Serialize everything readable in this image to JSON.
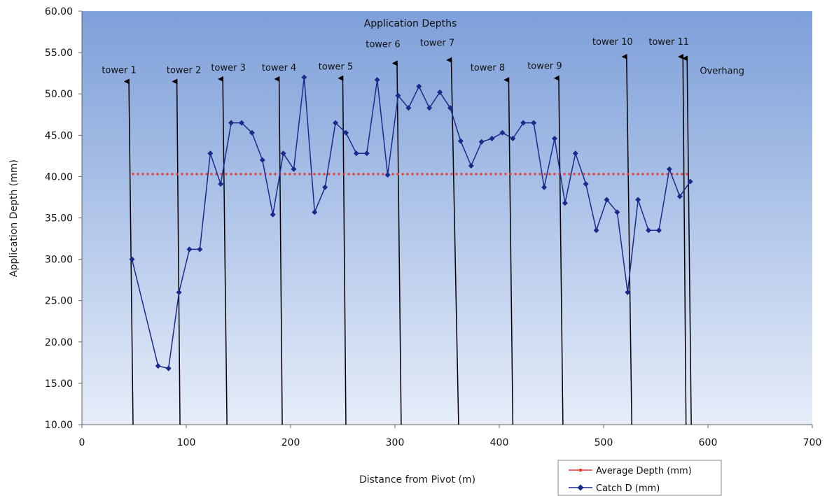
{
  "chart_data": {
    "type": "line",
    "title": "Application Depths",
    "xlabel": "Distance from Pivot (m)",
    "ylabel": "Application Depth (mm)",
    "xlim": [
      0,
      700
    ],
    "ylim": [
      10,
      60
    ],
    "x_ticks": [
      0,
      100,
      200,
      300,
      400,
      500,
      600,
      700
    ],
    "y_ticks": [
      10,
      15,
      20,
      25,
      30,
      35,
      40,
      45,
      50,
      55,
      60
    ],
    "x_tick_labels": [
      "0",
      "100",
      "200",
      "300",
      "400",
      "500",
      "600",
      "700"
    ],
    "y_tick_labels": [
      "10.00",
      "15.00",
      "20.00",
      "25.00",
      "30.00",
      "35.00",
      "40.00",
      "45.00",
      "50.00",
      "55.00",
      "60.00"
    ],
    "background": "vertical gradient, blue (#7d9fd9) at top to pale blue (#e6edf9) at bottom",
    "grid": false,
    "legend_position": "bottom-right",
    "series": [
      {
        "name": "Average Depth (mm)",
        "color": "#e8382c",
        "style": "dotted",
        "x": [
          48,
          582
        ],
        "y": [
          40.3,
          40.3
        ]
      },
      {
        "name": "Catch D (mm)",
        "color": "#1b2a8a",
        "style": "solid with diamond markers",
        "x": [
          48,
          73,
          83,
          93,
          103,
          113,
          123,
          133,
          143,
          153,
          163,
          173,
          183,
          193,
          203,
          213,
          223,
          233,
          243,
          253,
          263,
          273,
          283,
          293,
          303,
          313,
          323,
          333,
          343,
          353,
          363,
          373,
          383,
          393,
          403,
          413,
          423,
          433,
          443,
          453,
          463,
          473,
          483,
          493,
          503,
          513,
          523,
          533,
          543,
          553,
          563,
          573,
          583
        ],
        "y": [
          30.0,
          17.1,
          16.8,
          26.0,
          31.2,
          31.2,
          42.8,
          39.1,
          46.5,
          46.5,
          45.3,
          42.0,
          35.4,
          42.8,
          40.9,
          52.0,
          35.7,
          38.7,
          46.5,
          45.3,
          42.8,
          42.8,
          51.7,
          40.2,
          49.8,
          48.3,
          50.9,
          48.3,
          50.2,
          48.3,
          44.3,
          41.3,
          44.2,
          44.6,
          45.3,
          44.6,
          46.5,
          46.5,
          38.7,
          44.6,
          36.8,
          42.8,
          39.1,
          33.5,
          37.2,
          35.7,
          26.0,
          37.2,
          33.5,
          33.5,
          40.9,
          37.6,
          39.4
        ]
      }
    ],
    "annotations": [
      {
        "label": "tower 1",
        "x_top": 45,
        "x_bottom": 49,
        "y_top": 51.5
      },
      {
        "label": "tower 2",
        "x_top": 91,
        "x_bottom": 94,
        "y_top": 51.5
      },
      {
        "label": "tower 3",
        "x_top": 135,
        "x_bottom": 139,
        "y_top": 51.8
      },
      {
        "label": "tower 4",
        "x_top": 189,
        "x_bottom": 192,
        "y_top": 51.8
      },
      {
        "label": "tower 5",
        "x_top": 250,
        "x_bottom": 253,
        "y_top": 51.9
      },
      {
        "label": "tower 6",
        "x_top": 302,
        "x_bottom": 306,
        "y_top": 53.7
      },
      {
        "label": "tower 7",
        "x_top": 354,
        "x_bottom": 361,
        "y_top": 54.1
      },
      {
        "label": "tower 8",
        "x_top": 409,
        "x_bottom": 413,
        "y_top": 51.7
      },
      {
        "label": "tower  9",
        "x_top": 457,
        "x_bottom": 461,
        "y_top": 51.9
      },
      {
        "label": "tower 10",
        "x_top": 522,
        "x_bottom": 527,
        "y_top": 54.5
      },
      {
        "label": "tower 11",
        "x_top": 576,
        "x_bottom": 579,
        "y_top": 54.5
      },
      {
        "label": "Overhang",
        "x_top": 580,
        "x_bottom": 584,
        "y_top": 54.3
      }
    ]
  }
}
